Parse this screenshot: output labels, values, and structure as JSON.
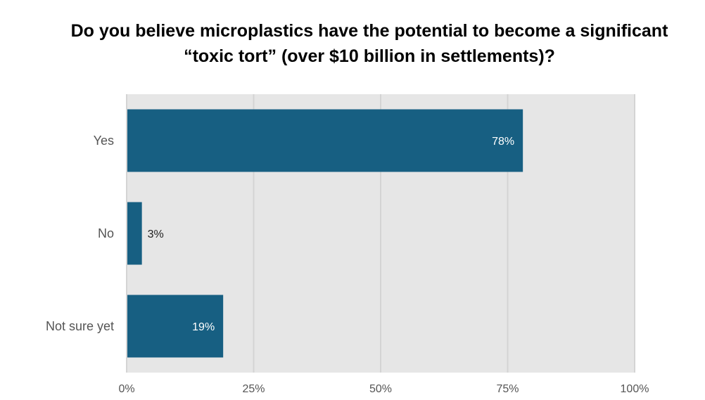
{
  "chart_data": {
    "type": "bar",
    "orientation": "horizontal",
    "title": "Do you believe microplastics have the potential to become a significant “toxic tort” (over $10 billion in settlements)?",
    "categories": [
      "Yes",
      "No",
      "Not sure yet"
    ],
    "values": [
      78,
      3,
      19
    ],
    "data_labels": [
      "78%",
      "3%",
      "19%"
    ],
    "xlim": [
      0,
      100
    ],
    "x_ticks": [
      "0%",
      "25%",
      "50%",
      "75%",
      "100%"
    ],
    "x_tick_values": [
      0,
      25,
      50,
      75,
      100
    ],
    "grid": true,
    "legend": "none",
    "colors": {
      "bar": "#175f82",
      "plot_background": "#e6e6e6",
      "grid": "#d4d4d4"
    }
  }
}
